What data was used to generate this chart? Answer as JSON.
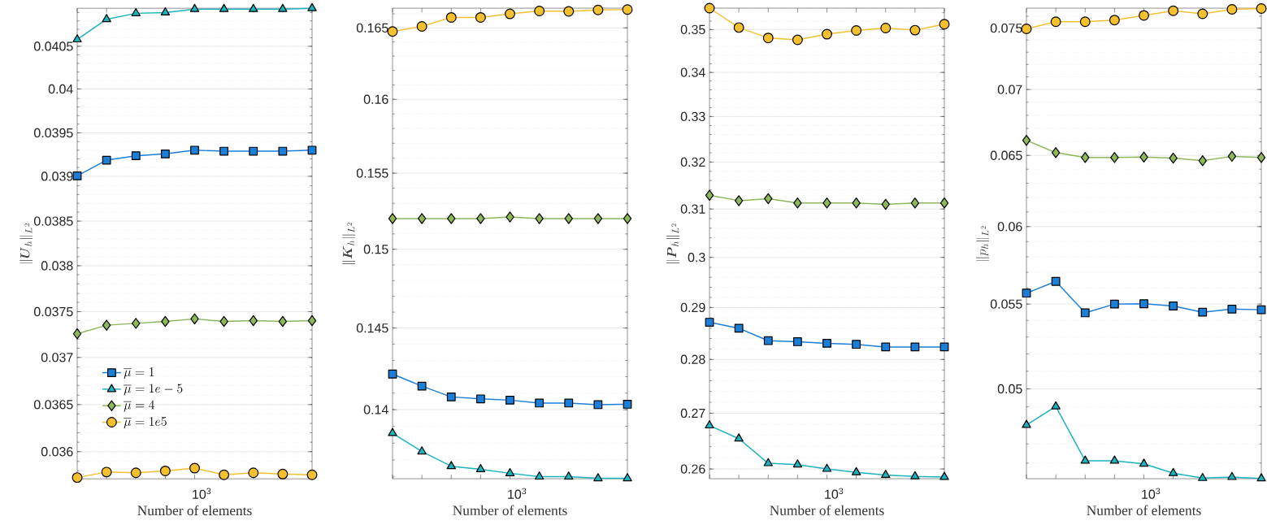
{
  "chart_data": [
    {
      "type": "line",
      "log": true,
      "grid": "y",
      "legend": "bottom left",
      "xlabel": "Number of elements",
      "ylabel": "\\|\\boldsymbol{U}_h\\|_{L^2}",
      "annotations": [
        "10$^{3}$"
      ],
      "categories": [
        null,
        null,
        null,
        null,
        null,
        null,
        null,
        null,
        null
      ],
      "ylim": [
        0.03572,
        0.04095
      ],
      "yticks": [
        0.036,
        0.0365,
        0.037,
        0.0375,
        0.038,
        0.0385,
        0.039,
        0.0395,
        0.04,
        0.0405
      ],
      "series": [
        {
          "name": "\\overline{\\mu}=1",
          "marker": "square",
          "color": "#1a7fd9",
          "values": [
            0.03901,
            0.03919,
            0.03924,
            0.03926,
            0.0393,
            0.03929,
            0.03929,
            0.03929,
            0.0393
          ]
        },
        {
          "name": "\\overline{\\mu}=1e-5",
          "marker": "triangle",
          "color": "#1ab3bf",
          "values": [
            0.04058,
            0.04082,
            0.04089,
            0.0409,
            0.04094,
            0.04094,
            0.04094,
            0.04094,
            0.04095
          ]
        },
        {
          "name": "\\overline{\\mu}=4",
          "marker": "diamond",
          "color": "#8cb85a",
          "values": [
            0.03726,
            0.03735,
            0.03737,
            0.03739,
            0.03742,
            0.03739,
            0.0374,
            0.03739,
            0.0374
          ]
        },
        {
          "name": "\\overline{\\mu}=1e5",
          "marker": "circle",
          "color": "#f5c02e",
          "values": [
            0.03573,
            0.03579,
            0.03578,
            0.0358,
            0.03583,
            0.03576,
            0.03578,
            0.03577,
            0.03576
          ]
        }
      ]
    },
    {
      "type": "line",
      "log": true,
      "grid": "y",
      "xlabel": "Number of elements",
      "ylabel": "\\|\\boldsymbol{K}_h\\|_{L^2}",
      "annotations": [
        "10$^{3}$"
      ],
      "categories": [
        null,
        null,
        null,
        null,
        null,
        null,
        null,
        null,
        null
      ],
      "ylim": [
        0.1359,
        0.1664
      ],
      "yticks": [
        0.14,
        0.145,
        0.15,
        0.155,
        0.16,
        0.165
      ],
      "series": [
        {
          "marker": "square",
          "color": "#1a7fd9",
          "values": [
            0.14216,
            0.14142,
            0.14077,
            0.14065,
            0.14057,
            0.1404,
            0.1404,
            0.1403,
            0.14032
          ]
        },
        {
          "marker": "triangle",
          "color": "#1ab3bf",
          "values": [
            0.13859,
            0.1375,
            0.13663,
            0.13645,
            0.13622,
            0.13602,
            0.13602,
            0.13592,
            0.13592
          ]
        },
        {
          "marker": "diamond",
          "color": "#8cb85a",
          "values": [
            0.152,
            0.152,
            0.152,
            0.152,
            0.1521,
            0.152,
            0.152,
            0.152,
            0.152
          ]
        },
        {
          "marker": "circle",
          "color": "#f5c02e",
          "values": [
            0.16474,
            0.1651,
            0.16574,
            0.16574,
            0.166,
            0.1662,
            0.16617,
            0.16627,
            0.1663
          ]
        }
      ]
    },
    {
      "type": "line",
      "log": true,
      "grid": "y",
      "xlabel": "Number of elements",
      "ylabel": "\\|\\boldsymbol{P}_h\\|_{L^2}",
      "annotations": [
        "10$^{3}$"
      ],
      "categories": [
        null,
        null,
        null,
        null,
        null,
        null,
        null,
        null,
        null
      ],
      "ylim": [
        0.2583,
        0.3551
      ],
      "yticks": [
        0.26,
        0.27,
        0.28,
        0.29,
        0.3,
        0.31,
        0.32,
        0.33,
        0.34,
        0.35
      ],
      "series": [
        {
          "marker": "square",
          "color": "#1a7fd9",
          "values": [
            0.28713,
            0.28596,
            0.28358,
            0.28339,
            0.28307,
            0.28288,
            0.28237,
            0.28237,
            0.28237
          ]
        },
        {
          "marker": "triangle",
          "color": "#1ab3bf",
          "values": [
            0.26777,
            0.26539,
            0.261,
            0.26077,
            0.26,
            0.25941,
            0.25894,
            0.25871,
            0.25859
          ]
        },
        {
          "marker": "diamond",
          "color": "#8cb85a",
          "values": [
            0.31287,
            0.31174,
            0.31216,
            0.31125,
            0.31125,
            0.31125,
            0.31097,
            0.31125,
            0.31125
          ]
        },
        {
          "marker": "circle",
          "color": "#f5c02e",
          "values": [
            0.3551,
            0.35048,
            0.34803,
            0.34756,
            0.3489,
            0.34976,
            0.35032,
            0.34984,
            0.35127
          ]
        }
      ]
    },
    {
      "type": "line",
      "log": true,
      "grid": "y",
      "xlabel": "Number of elements",
      "ylabel": "\\|p_h\\|_{L^2}",
      "annotations": [
        "10$^{3}$"
      ],
      "categories": [
        null,
        null,
        null,
        null,
        null,
        null,
        null,
        null,
        null
      ],
      "ylim": [
        0.0452,
        0.0767
      ],
      "yticks": [
        0.05,
        0.055,
        0.06,
        0.065,
        0.07,
        0.075
      ],
      "series": [
        {
          "marker": "square",
          "color": "#1a7fd9",
          "values": [
            0.05568,
            0.05642,
            0.05446,
            0.055,
            0.05502,
            0.05488,
            0.0545,
            0.05469,
            0.05465
          ]
        },
        {
          "marker": "triangle",
          "color": "#1ab3bf",
          "values": [
            0.04801,
            0.04902,
            0.04612,
            0.04612,
            0.04596,
            0.04548,
            0.04523,
            0.04528,
            0.04521
          ]
        },
        {
          "marker": "diamond",
          "color": "#8cb85a",
          "values": [
            0.06611,
            0.0652,
            0.06485,
            0.06485,
            0.06488,
            0.0648,
            0.06461,
            0.06493,
            0.06485
          ]
        },
        {
          "marker": "circle",
          "color": "#f5c02e",
          "values": [
            0.07494,
            0.07554,
            0.07554,
            0.07568,
            0.07608,
            0.07648,
            0.07622,
            0.0766,
            0.07667
          ]
        }
      ]
    }
  ]
}
